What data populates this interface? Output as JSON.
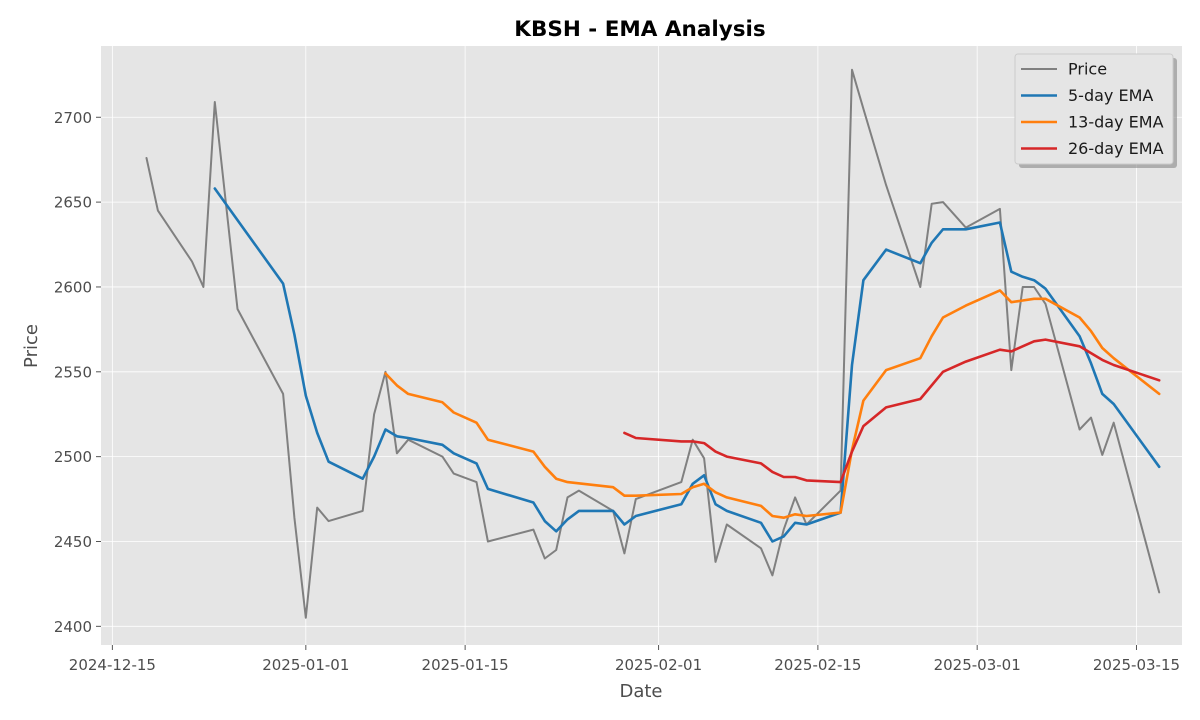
{
  "chart_data": {
    "type": "line",
    "title": "KBSH - EMA Analysis",
    "xlabel": "Date",
    "ylabel": "Price",
    "x_start": "2024-12-18",
    "x_end": "2025-03-16",
    "xlim": [
      "2024-12-14",
      "2025-03-19"
    ],
    "ylim": [
      2389,
      2742
    ],
    "grid": true,
    "legend_position": "top-right",
    "x_ticks": [
      "2024-12-15",
      "2025-01-01",
      "2025-01-15",
      "2025-02-01",
      "2025-02-15",
      "2025-03-01",
      "2025-03-15"
    ],
    "y_ticks": [
      2400,
      2450,
      2500,
      2550,
      2600,
      2650,
      2700
    ],
    "series": [
      {
        "name": "Price",
        "color": "#808080",
        "points": [
          [
            "2024-12-18",
            2676
          ],
          [
            "2024-12-19",
            2645
          ],
          [
            "2024-12-22",
            2615
          ],
          [
            "2024-12-23",
            2600
          ],
          [
            "2024-12-24",
            2709
          ],
          [
            "2024-12-26",
            2587
          ],
          [
            "2024-12-30",
            2537
          ],
          [
            "2024-12-31",
            2464
          ],
          [
            "2025-01-01",
            2405
          ],
          [
            "2025-01-02",
            2470
          ],
          [
            "2025-01-03",
            2462
          ],
          [
            "2025-01-06",
            2468
          ],
          [
            "2025-01-07",
            2525
          ],
          [
            "2025-01-08",
            2550
          ],
          [
            "2025-01-09",
            2502
          ],
          [
            "2025-01-10",
            2510
          ],
          [
            "2025-01-13",
            2500
          ],
          [
            "2025-01-14",
            2490
          ],
          [
            "2025-01-16",
            2485
          ],
          [
            "2025-01-17",
            2450
          ],
          [
            "2025-01-21",
            2457
          ],
          [
            "2025-01-22",
            2440
          ],
          [
            "2025-01-23",
            2445
          ],
          [
            "2025-01-24",
            2476
          ],
          [
            "2025-01-25",
            2480
          ],
          [
            "2025-01-28",
            2468
          ],
          [
            "2025-01-29",
            2443
          ],
          [
            "2025-01-30",
            2475
          ],
          [
            "2025-02-03",
            2485
          ],
          [
            "2025-02-04",
            2510
          ],
          [
            "2025-02-05",
            2499
          ],
          [
            "2025-02-06",
            2438
          ],
          [
            "2025-02-07",
            2460
          ],
          [
            "2025-02-10",
            2446
          ],
          [
            "2025-02-11",
            2430
          ],
          [
            "2025-02-12",
            2457
          ],
          [
            "2025-02-13",
            2476
          ],
          [
            "2025-02-14",
            2460
          ],
          [
            "2025-02-17",
            2480
          ],
          [
            "2025-02-18",
            2728
          ],
          [
            "2025-02-19",
            2705
          ],
          [
            "2025-02-21",
            2660
          ],
          [
            "2025-02-24",
            2600
          ],
          [
            "2025-02-25",
            2649
          ],
          [
            "2025-02-26",
            2650
          ],
          [
            "2025-02-28",
            2635
          ],
          [
            "2025-03-03",
            2646
          ],
          [
            "2025-03-04",
            2551
          ],
          [
            "2025-03-05",
            2600
          ],
          [
            "2025-03-06",
            2600
          ],
          [
            "2025-03-07",
            2590
          ],
          [
            "2025-03-10",
            2516
          ],
          [
            "2025-03-11",
            2523
          ],
          [
            "2025-03-12",
            2501
          ],
          [
            "2025-03-13",
            2520
          ],
          [
            "2025-03-17",
            2420
          ]
        ]
      },
      {
        "name": "5-day EMA",
        "color": "#1f77b4",
        "points": [
          [
            "2024-12-24",
            2658
          ],
          [
            "2024-12-30",
            2602
          ],
          [
            "2024-12-31",
            2572
          ],
          [
            "2025-01-01",
            2536
          ],
          [
            "2025-01-02",
            2514
          ],
          [
            "2025-01-03",
            2497
          ],
          [
            "2025-01-06",
            2487
          ],
          [
            "2025-01-07",
            2500
          ],
          [
            "2025-01-08",
            2516
          ],
          [
            "2025-01-09",
            2512
          ],
          [
            "2025-01-10",
            2511
          ],
          [
            "2025-01-13",
            2507
          ],
          [
            "2025-01-14",
            2502
          ],
          [
            "2025-01-16",
            2496
          ],
          [
            "2025-01-17",
            2481
          ],
          [
            "2025-01-21",
            2473
          ],
          [
            "2025-01-22",
            2462
          ],
          [
            "2025-01-23",
            2456
          ],
          [
            "2025-01-24",
            2463
          ],
          [
            "2025-01-25",
            2468
          ],
          [
            "2025-01-28",
            2468
          ],
          [
            "2025-01-29",
            2460
          ],
          [
            "2025-01-30",
            2465
          ],
          [
            "2025-02-03",
            2472
          ],
          [
            "2025-02-04",
            2484
          ],
          [
            "2025-02-05",
            2489
          ],
          [
            "2025-02-06",
            2472
          ],
          [
            "2025-02-07",
            2468
          ],
          [
            "2025-02-10",
            2461
          ],
          [
            "2025-02-11",
            2450
          ],
          [
            "2025-02-12",
            2453
          ],
          [
            "2025-02-13",
            2461
          ],
          [
            "2025-02-14",
            2460
          ],
          [
            "2025-02-17",
            2467
          ],
          [
            "2025-02-18",
            2554
          ],
          [
            "2025-02-19",
            2604
          ],
          [
            "2025-02-21",
            2622
          ],
          [
            "2025-02-24",
            2614
          ],
          [
            "2025-02-25",
            2626
          ],
          [
            "2025-02-26",
            2634
          ],
          [
            "2025-02-28",
            2634
          ],
          [
            "2025-03-03",
            2638
          ],
          [
            "2025-03-04",
            2609
          ],
          [
            "2025-03-05",
            2606
          ],
          [
            "2025-03-06",
            2604
          ],
          [
            "2025-03-07",
            2599
          ],
          [
            "2025-03-10",
            2571
          ],
          [
            "2025-03-11",
            2555
          ],
          [
            "2025-03-12",
            2537
          ],
          [
            "2025-03-13",
            2531
          ],
          [
            "2025-03-17",
            2494
          ]
        ]
      },
      {
        "name": "13-day EMA",
        "color": "#ff7f0e",
        "points": [
          [
            "2025-01-08",
            2549
          ],
          [
            "2025-01-09",
            2542
          ],
          [
            "2025-01-10",
            2537
          ],
          [
            "2025-01-13",
            2532
          ],
          [
            "2025-01-14",
            2526
          ],
          [
            "2025-01-16",
            2520
          ],
          [
            "2025-01-17",
            2510
          ],
          [
            "2025-01-21",
            2503
          ],
          [
            "2025-01-22",
            2494
          ],
          [
            "2025-01-23",
            2487
          ],
          [
            "2025-01-24",
            2485
          ],
          [
            "2025-01-28",
            2482
          ],
          [
            "2025-01-29",
            2477
          ],
          [
            "2025-01-30",
            2477
          ],
          [
            "2025-02-03",
            2478
          ],
          [
            "2025-02-04",
            2482
          ],
          [
            "2025-02-05",
            2484
          ],
          [
            "2025-02-06",
            2479
          ],
          [
            "2025-02-07",
            2476
          ],
          [
            "2025-02-10",
            2471
          ],
          [
            "2025-02-11",
            2465
          ],
          [
            "2025-02-12",
            2464
          ],
          [
            "2025-02-13",
            2466
          ],
          [
            "2025-02-14",
            2465
          ],
          [
            "2025-02-17",
            2467
          ],
          [
            "2025-02-18",
            2504
          ],
          [
            "2025-02-19",
            2533
          ],
          [
            "2025-02-21",
            2551
          ],
          [
            "2025-02-24",
            2558
          ],
          [
            "2025-02-25",
            2571
          ],
          [
            "2025-02-26",
            2582
          ],
          [
            "2025-02-28",
            2589
          ],
          [
            "2025-03-03",
            2598
          ],
          [
            "2025-03-04",
            2591
          ],
          [
            "2025-03-05",
            2592
          ],
          [
            "2025-03-06",
            2593
          ],
          [
            "2025-03-07",
            2593
          ],
          [
            "2025-03-10",
            2582
          ],
          [
            "2025-03-11",
            2574
          ],
          [
            "2025-03-12",
            2564
          ],
          [
            "2025-03-13",
            2558
          ],
          [
            "2025-03-17",
            2537
          ]
        ]
      },
      {
        "name": "26-day EMA",
        "color": "#d62728",
        "points": [
          [
            "2025-01-29",
            2514
          ],
          [
            "2025-01-30",
            2511
          ],
          [
            "2025-02-03",
            2509
          ],
          [
            "2025-02-04",
            2509
          ],
          [
            "2025-02-05",
            2508
          ],
          [
            "2025-02-06",
            2503
          ],
          [
            "2025-02-07",
            2500
          ],
          [
            "2025-02-10",
            2496
          ],
          [
            "2025-02-11",
            2491
          ],
          [
            "2025-02-12",
            2488
          ],
          [
            "2025-02-13",
            2488
          ],
          [
            "2025-02-14",
            2486
          ],
          [
            "2025-02-17",
            2485
          ],
          [
            "2025-02-18",
            2503
          ],
          [
            "2025-02-19",
            2518
          ],
          [
            "2025-02-21",
            2529
          ],
          [
            "2025-02-24",
            2534
          ],
          [
            "2025-02-26",
            2550
          ],
          [
            "2025-02-28",
            2556
          ],
          [
            "2025-03-03",
            2563
          ],
          [
            "2025-03-04",
            2562
          ],
          [
            "2025-03-05",
            2565
          ],
          [
            "2025-03-06",
            2568
          ],
          [
            "2025-03-07",
            2569
          ],
          [
            "2025-03-10",
            2565
          ],
          [
            "2025-03-11",
            2561
          ],
          [
            "2025-03-12",
            2557
          ],
          [
            "2025-03-13",
            2554
          ],
          [
            "2025-03-17",
            2545
          ]
        ]
      }
    ]
  }
}
